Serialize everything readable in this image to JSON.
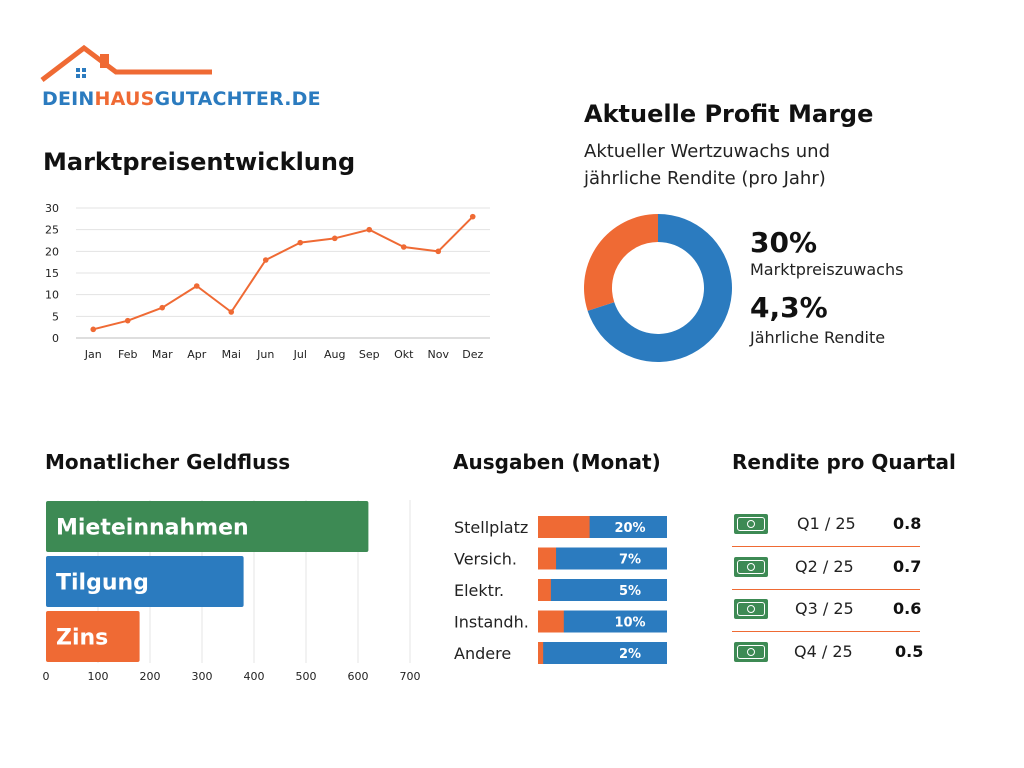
{
  "logo": {
    "part1": "DEIN",
    "part2": "HAUS",
    "part3": "GUTACHTER.DE"
  },
  "colors": {
    "orange": "#ef6a34",
    "blue": "#2b7bbf",
    "green": "#3d8a54"
  },
  "line_title": "Marktpreisentwicklung",
  "profit": {
    "title": "Aktuelle Profit Marge",
    "subtitle_line1": "Aktueller Wertzuwachs und",
    "subtitle_line2": "jährliche Rendite (pro Jahr)",
    "stat1_value": "30%",
    "stat1_label": "Marktpreiszuwachs",
    "stat2_value": "4,3%",
    "stat2_label": "Jährliche Rendite"
  },
  "cashflow_title": "Monatlicher Geldfluss",
  "expenses_title": "Ausgaben (Monat)",
  "quarter_title": "Rendite pro Quartal",
  "quarters": [
    {
      "label": "Q1 / 25",
      "value": "0.8",
      "icon": "cash-icon"
    },
    {
      "label": "Q2 / 25",
      "value": "0.7",
      "icon": "cash-icon"
    },
    {
      "label": "Q3 / 25",
      "value": "0.6",
      "icon": "cash-icon"
    },
    {
      "label": "Q4 / 25",
      "value": "0.5",
      "icon": "cash-icon"
    }
  ],
  "chart_data": [
    {
      "type": "line",
      "title": "Marktpreisentwicklung",
      "categories": [
        "Jan",
        "Feb",
        "Mar",
        "Apr",
        "Mai",
        "Jun",
        "Jul",
        "Aug",
        "Sep",
        "Okt",
        "Nov",
        "Dez"
      ],
      "values": [
        2,
        4,
        7,
        12,
        6,
        18,
        22,
        23,
        25,
        21,
        20,
        28
      ],
      "yticks": [
        0,
        5,
        10,
        15,
        20,
        25,
        30
      ],
      "ylim": [
        0,
        30
      ],
      "grid": true
    },
    {
      "type": "pie",
      "variant": "donut",
      "slices": [
        {
          "name": "Marktpreiszuwachs",
          "value": 30,
          "color": "#ef6a34"
        },
        {
          "name": "",
          "value": 70,
          "color": "#2b7bbf"
        }
      ]
    },
    {
      "type": "bar",
      "orientation": "horizontal",
      "title": "Monatlicher Geldfluss",
      "categories": [
        "Mieteinnahmen",
        "Tilgung",
        "Zins"
      ],
      "values": [
        620,
        380,
        180
      ],
      "colors": [
        "#3d8a54",
        "#2b7bbf",
        "#ef6a34"
      ],
      "xticks": [
        0,
        100,
        200,
        300,
        400,
        500,
        600,
        700
      ],
      "xlim": [
        0,
        700
      ],
      "grid": true
    },
    {
      "type": "bar",
      "orientation": "horizontal",
      "variant": "stacked-percent",
      "title": "Ausgaben (Monat)",
      "categories": [
        "Stellplatz",
        "Versich.",
        "Elektr.",
        "Instandh.",
        "Andere"
      ],
      "values": [
        20,
        7,
        5,
        10,
        2
      ],
      "labels": [
        "20%",
        "7%",
        "5%",
        "10%",
        "2%"
      ]
    }
  ]
}
